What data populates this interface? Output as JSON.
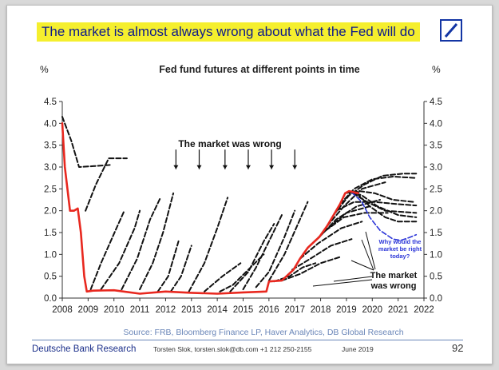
{
  "headline": "The market is almost always wrong about what the Fed will do",
  "logo_name": "deutsche-bank-logo",
  "footer": {
    "source": "Source: FRB, Bloomberg Finance LP, Haver Analytics, DB Global Research",
    "org": "Deutsche Bank Research",
    "author": "Torsten Slok, torsten.slok@db.com +1 212 250-2155",
    "date": "June 2019",
    "page": "92"
  },
  "colors": {
    "headline_bg": "#f5ef2e",
    "headline_text": "#0d1a8c",
    "fed_funds": "#e8281f",
    "futures": "#111111",
    "annotation_blue": "#2b35d8",
    "footer_blue": "#1b2f8a"
  },
  "chart_data": {
    "type": "line",
    "title": "Fed fund futures at different points in time",
    "ylabel_left": "%",
    "ylabel_right": "%",
    "xlim": [
      2008,
      2022
    ],
    "ylim": [
      0,
      4.5
    ],
    "x_ticks": [
      "2008",
      "2009",
      "2010",
      "2011",
      "2012",
      "2013",
      "2014",
      "2015",
      "2016",
      "2017",
      "2018",
      "2019",
      "2020",
      "2021",
      "2022"
    ],
    "y_ticks": [
      "0.0",
      "0.5",
      "1.0",
      "1.5",
      "2.0",
      "2.5",
      "3.0",
      "3.5",
      "4.0",
      "4.5"
    ],
    "grid": false,
    "series": [
      {
        "style": "solid-red",
        "points": [
          [
            2008.0,
            4.0
          ],
          [
            2008.1,
            3.0
          ],
          [
            2008.3,
            2.0
          ],
          [
            2008.45,
            2.0
          ],
          [
            2008.6,
            2.05
          ],
          [
            2008.72,
            1.5
          ],
          [
            2008.85,
            0.5
          ],
          [
            2008.95,
            0.15
          ],
          [
            2009.2,
            0.17
          ],
          [
            2010.0,
            0.18
          ],
          [
            2011.0,
            0.1
          ],
          [
            2012.0,
            0.15
          ],
          [
            2013.0,
            0.12
          ],
          [
            2014.0,
            0.1
          ],
          [
            2015.0,
            0.13
          ],
          [
            2015.9,
            0.15
          ],
          [
            2016.0,
            0.38
          ],
          [
            2016.5,
            0.4
          ],
          [
            2016.95,
            0.65
          ],
          [
            2017.2,
            0.9
          ],
          [
            2017.5,
            1.15
          ],
          [
            2017.95,
            1.4
          ],
          [
            2018.25,
            1.65
          ],
          [
            2018.5,
            1.9
          ],
          [
            2018.75,
            2.15
          ],
          [
            2018.95,
            2.4
          ],
          [
            2019.1,
            2.45
          ],
          [
            2019.45,
            2.4
          ]
        ]
      },
      {
        "style": "dashed-black",
        "points": [
          [
            2008.0,
            4.15
          ],
          [
            2008.35,
            3.6
          ],
          [
            2008.65,
            3.0
          ],
          [
            2009.2,
            3.02
          ],
          [
            2009.9,
            3.05
          ]
        ]
      },
      {
        "style": "dashed-black",
        "points": [
          [
            2008.9,
            2.0
          ],
          [
            2009.3,
            2.6
          ],
          [
            2009.8,
            3.2
          ],
          [
            2010.5,
            3.2
          ]
        ]
      },
      {
        "style": "dashed-black",
        "points": [
          [
            2009.1,
            0.2
          ],
          [
            2009.5,
            0.8
          ],
          [
            2010.1,
            1.6
          ],
          [
            2010.4,
            2.0
          ]
        ]
      },
      {
        "style": "dashed-black",
        "points": [
          [
            2009.5,
            0.2
          ],
          [
            2010.2,
            0.8
          ],
          [
            2010.8,
            1.6
          ],
          [
            2011.0,
            2.0
          ]
        ]
      },
      {
        "style": "dashed-black",
        "points": [
          [
            2010.3,
            0.2
          ],
          [
            2010.9,
            0.9
          ],
          [
            2011.4,
            1.8
          ],
          [
            2011.8,
            2.3
          ]
        ]
      },
      {
        "style": "dashed-black",
        "points": [
          [
            2011.0,
            0.2
          ],
          [
            2011.5,
            0.8
          ],
          [
            2011.9,
            1.5
          ],
          [
            2012.3,
            2.4
          ]
        ]
      },
      {
        "style": "dashed-black",
        "points": [
          [
            2011.7,
            0.15
          ],
          [
            2012.1,
            0.5
          ],
          [
            2012.5,
            1.3
          ]
        ]
      },
      {
        "style": "dashed-black",
        "points": [
          [
            2012.2,
            0.15
          ],
          [
            2012.6,
            0.5
          ],
          [
            2013.0,
            1.2
          ]
        ]
      },
      {
        "style": "dashed-black",
        "points": [
          [
            2012.9,
            0.15
          ],
          [
            2013.5,
            0.8
          ],
          [
            2014.0,
            1.6
          ],
          [
            2014.4,
            2.3
          ]
        ]
      },
      {
        "style": "dashed-black",
        "points": [
          [
            2013.5,
            0.15
          ],
          [
            2014.2,
            0.5
          ],
          [
            2014.9,
            0.8
          ]
        ]
      },
      {
        "style": "dashed-black",
        "points": [
          [
            2014.1,
            0.15
          ],
          [
            2014.6,
            0.3
          ],
          [
            2015.2,
            0.65
          ],
          [
            2015.8,
            1.0
          ]
        ]
      },
      {
        "style": "dashed-black",
        "points": [
          [
            2014.5,
            0.15
          ],
          [
            2015.2,
            0.6
          ],
          [
            2015.8,
            1.3
          ],
          [
            2016.2,
            1.7
          ]
        ]
      },
      {
        "style": "dashed-black",
        "points": [
          [
            2015.0,
            0.2
          ],
          [
            2015.5,
            0.7
          ],
          [
            2016.0,
            1.3
          ],
          [
            2016.5,
            1.9
          ]
        ]
      },
      {
        "style": "dashed-black",
        "points": [
          [
            2015.5,
            0.25
          ],
          [
            2016.0,
            0.6
          ],
          [
            2016.6,
            1.4
          ],
          [
            2017.0,
            2.0
          ]
        ]
      },
      {
        "style": "dashed-black",
        "points": [
          [
            2016.0,
            0.4
          ],
          [
            2016.6,
            1.0
          ],
          [
            2017.2,
            1.8
          ],
          [
            2017.5,
            2.2
          ]
        ]
      },
      {
        "style": "dashed-black",
        "points": [
          [
            2016.2,
            0.38
          ],
          [
            2016.8,
            0.5
          ],
          [
            2017.3,
            0.7
          ],
          [
            2017.8,
            0.8
          ]
        ]
      },
      {
        "style": "dashed-black",
        "points": [
          [
            2016.5,
            0.4
          ],
          [
            2017.2,
            0.55
          ],
          [
            2018.0,
            0.8
          ],
          [
            2018.8,
            0.95
          ]
        ]
      },
      {
        "style": "dashed-black",
        "points": [
          [
            2016.9,
            0.65
          ],
          [
            2017.6,
            0.9
          ],
          [
            2018.4,
            1.2
          ],
          [
            2019.2,
            1.35
          ]
        ]
      },
      {
        "style": "dashed-black",
        "points": [
          [
            2017.2,
            0.9
          ],
          [
            2017.9,
            1.25
          ],
          [
            2018.8,
            1.6
          ],
          [
            2019.6,
            1.75
          ]
        ]
      },
      {
        "style": "dashed-black",
        "points": [
          [
            2017.5,
            1.15
          ],
          [
            2018.2,
            1.55
          ],
          [
            2019.0,
            1.95
          ],
          [
            2019.9,
            2.1
          ]
        ]
      },
      {
        "style": "dashed-black",
        "points": [
          [
            2017.95,
            1.4
          ],
          [
            2018.6,
            1.8
          ],
          [
            2019.4,
            2.1
          ],
          [
            2020.3,
            2.25
          ]
        ]
      },
      {
        "style": "dashed-black",
        "points": [
          [
            2018.25,
            1.65
          ],
          [
            2018.9,
            2.1
          ],
          [
            2019.6,
            2.5
          ],
          [
            2020.5,
            2.65
          ]
        ]
      },
      {
        "style": "dashed-black",
        "points": [
          [
            2018.5,
            1.9
          ],
          [
            2019.1,
            2.35
          ],
          [
            2019.7,
            2.6
          ],
          [
            2020.4,
            2.8
          ],
          [
            2021.2,
            2.85
          ],
          [
            2021.7,
            2.85
          ]
        ]
      },
      {
        "style": "dashed-black",
        "points": [
          [
            2018.75,
            2.15
          ],
          [
            2019.3,
            2.5
          ],
          [
            2020.0,
            2.72
          ],
          [
            2020.8,
            2.78
          ],
          [
            2021.7,
            2.75
          ]
        ]
      },
      {
        "style": "dashed-black",
        "points": [
          [
            2018.95,
            2.4
          ],
          [
            2019.5,
            2.45
          ],
          [
            2020.1,
            2.4
          ],
          [
            2020.8,
            2.25
          ],
          [
            2021.6,
            2.2
          ]
        ]
      },
      {
        "style": "dashed-black",
        "points": [
          [
            2019.1,
            2.45
          ],
          [
            2019.6,
            2.35
          ],
          [
            2020.2,
            2.1
          ],
          [
            2021.0,
            1.9
          ],
          [
            2021.7,
            1.85
          ]
        ]
      },
      {
        "style": "dashed-black",
        "points": [
          [
            2019.25,
            2.4
          ],
          [
            2019.8,
            2.2
          ],
          [
            2020.5,
            2.0
          ],
          [
            2021.7,
            1.95
          ]
        ]
      },
      {
        "style": "dashed-black",
        "points": [
          [
            2019.4,
            2.4
          ],
          [
            2019.9,
            2.1
          ],
          [
            2020.5,
            1.85
          ],
          [
            2021.0,
            1.75
          ],
          [
            2021.7,
            1.75
          ]
        ]
      },
      {
        "style": "dashed-black",
        "points": [
          [
            2018.6,
            2.0
          ],
          [
            2019.3,
            2.2
          ],
          [
            2020.1,
            2.2
          ],
          [
            2021.0,
            2.15
          ],
          [
            2021.7,
            2.12
          ]
        ]
      },
      {
        "style": "dashed-black",
        "points": [
          [
            2018.2,
            1.55
          ],
          [
            2018.9,
            1.85
          ],
          [
            2019.7,
            1.95
          ],
          [
            2020.6,
            1.95
          ]
        ]
      },
      {
        "style": "dashed-blue",
        "points": [
          [
            2019.2,
            2.42
          ],
          [
            2019.6,
            2.2
          ],
          [
            2019.9,
            1.85
          ],
          [
            2020.3,
            1.55
          ],
          [
            2020.8,
            1.35
          ],
          [
            2021.1,
            1.32
          ],
          [
            2021.4,
            1.38
          ],
          [
            2021.7,
            1.45
          ]
        ]
      }
    ],
    "annotations": [
      {
        "text": "The market was wrong",
        "arrows_x": [
          2012.4,
          2013.3,
          2014.3,
          2015.2,
          2016.1,
          2017.0
        ],
        "arrow_y_top": 3.4,
        "arrow_y_bottom": 2.95
      },
      {
        "text": "The market\nwas wrong"
      },
      {
        "text": "Why would the\nmarket be right\ntoday?"
      }
    ]
  }
}
